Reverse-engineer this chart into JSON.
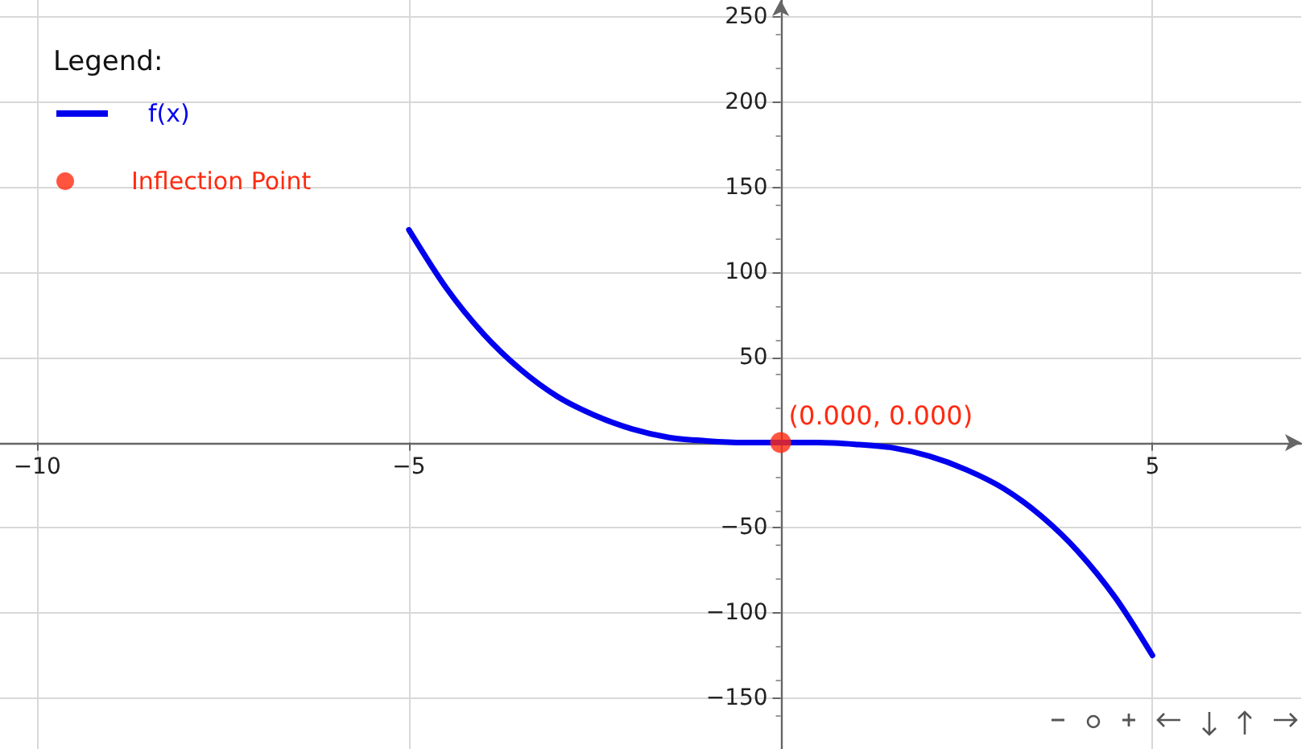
{
  "chart_data": {
    "type": "line",
    "legend_title": "Legend:",
    "legend": "top left",
    "grid": true,
    "xlim": [
      -10.5,
      7
    ],
    "ylim": [
      -180,
      260
    ],
    "xticks": [
      {
        "value": -10,
        "label": "−10"
      },
      {
        "value": -5,
        "label": "−5"
      },
      {
        "value": 0,
        "label": null
      },
      5
    ],
    "yticks": [
      {
        "value": -150,
        "label": "−150"
      },
      {
        "value": -100,
        "label": "−100"
      },
      {
        "value": -50,
        "label": "−50"
      },
      {
        "value": 0,
        "label": null
      },
      50,
      100,
      150,
      200,
      250
    ],
    "annotations": [
      {
        "text": "(0.000, 0.000)",
        "x": 0,
        "y": 0
      }
    ],
    "series": [
      {
        "name": "f(x)",
        "type": "line",
        "color": "#0000ee",
        "marker": "none",
        "line_style": "solid",
        "x": [
          -5,
          -4.5,
          -4,
          -3.5,
          -3,
          -2.5,
          -2,
          -1.5,
          -1,
          -0.5,
          0,
          0.5,
          1,
          1.5,
          2,
          2.5,
          3,
          3.5,
          4,
          4.5,
          5
        ],
        "values": [
          125,
          91,
          64,
          43,
          27,
          16,
          8,
          3,
          1,
          0,
          0,
          0,
          -1,
          -3,
          -8,
          -16,
          -27,
          -43,
          -64,
          -91,
          -125
        ]
      },
      {
        "name": "Inflection Point",
        "type": "scatter",
        "color": "#ff2a10",
        "marker": "circle",
        "x": [
          0
        ],
        "values": [
          0
        ]
      }
    ]
  }
}
